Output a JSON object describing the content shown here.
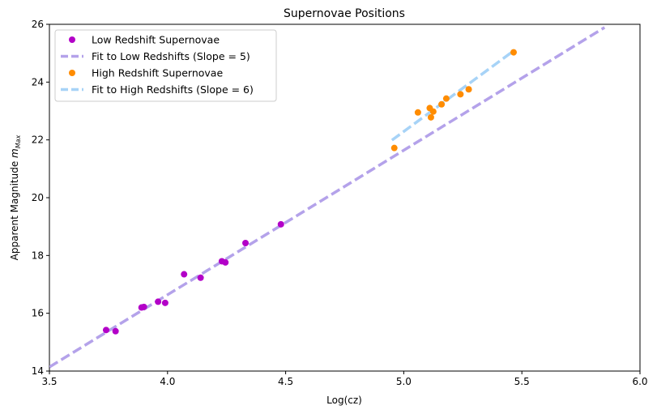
{
  "chart_data": {
    "type": "scatter",
    "title": "Supernovae Positions",
    "xlabel": "Log(cz)",
    "ylabel_main": "Apparent Magnitude ",
    "ylabel_math_m": "m",
    "ylabel_math_sub": "Max",
    "xlim": [
      3.5,
      6.0
    ],
    "ylim": [
      14,
      26
    ],
    "xticks": [
      3.5,
      4.0,
      4.5,
      5.0,
      5.5,
      6.0
    ],
    "xtick_labels": [
      "3.5",
      "4.0",
      "4.5",
      "5.0",
      "5.5",
      "6.0"
    ],
    "yticks": [
      14,
      16,
      18,
      20,
      22,
      24,
      26
    ],
    "ytick_labels": [
      "14",
      "16",
      "18",
      "20",
      "22",
      "24",
      "26"
    ],
    "grid": false,
    "legend_position": "top-left",
    "series": [
      {
        "name": "Low Redshift Supernovae",
        "kind": "scatter",
        "color": "#b300c8",
        "points": [
          [
            3.74,
            15.42
          ],
          [
            3.78,
            15.38
          ],
          [
            3.89,
            16.2
          ],
          [
            3.9,
            16.22
          ],
          [
            3.96,
            16.4
          ],
          [
            3.99,
            16.36
          ],
          [
            4.07,
            17.35
          ],
          [
            4.14,
            17.23
          ],
          [
            4.23,
            17.8
          ],
          [
            4.245,
            17.76
          ],
          [
            4.33,
            18.43
          ],
          [
            4.48,
            19.08
          ]
        ]
      },
      {
        "name": "Fit to Low Redshifts (Slope = 5)",
        "kind": "line",
        "color": "#b4a2ea",
        "dashed": true,
        "x": [
          3.5,
          5.85
        ],
        "y": [
          14.14,
          25.89
        ]
      },
      {
        "name": "High Redshift Supernovae",
        "kind": "scatter",
        "color": "#ff8c00",
        "points": [
          [
            4.96,
            21.72
          ],
          [
            5.06,
            22.95
          ],
          [
            5.11,
            23.1
          ],
          [
            5.115,
            22.78
          ],
          [
            5.125,
            22.98
          ],
          [
            5.16,
            23.23
          ],
          [
            5.18,
            23.43
          ],
          [
            5.24,
            23.58
          ],
          [
            5.275,
            23.75
          ],
          [
            5.465,
            25.03
          ]
        ]
      },
      {
        "name": "Fit to High Redshifts (Slope = 6)",
        "kind": "line",
        "color": "#a7d3f7",
        "dashed": true,
        "x": [
          4.95,
          5.47
        ],
        "y": [
          21.99,
          25.11
        ]
      }
    ]
  }
}
